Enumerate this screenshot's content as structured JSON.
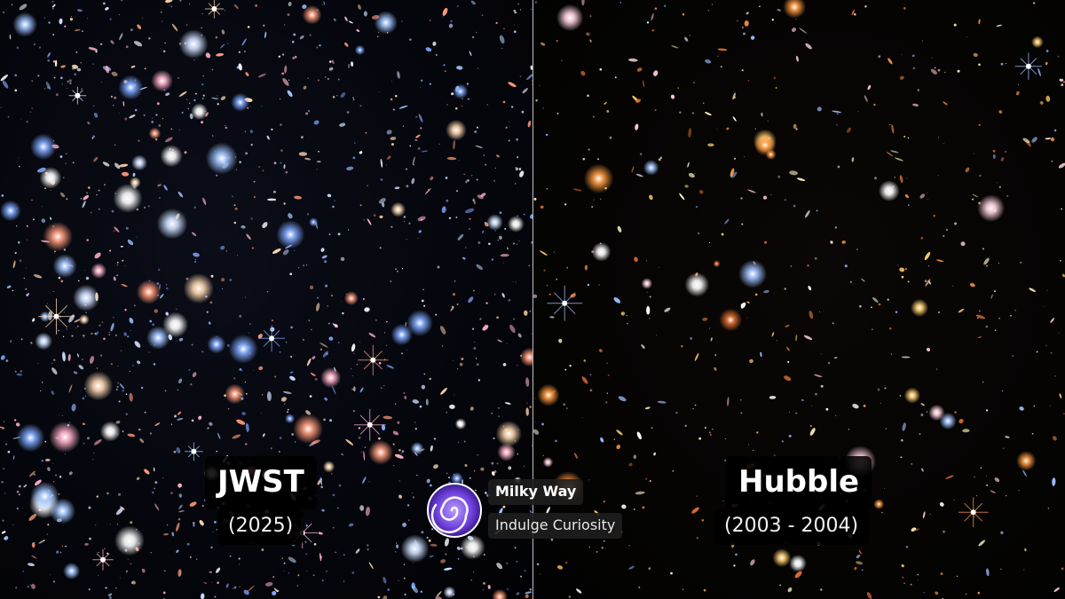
{
  "left_panel": {
    "title": "JWST",
    "years": "(2025)",
    "palette": [
      "#9fc4ff",
      "#cfe0ff",
      "#ffffff",
      "#ffd8b0",
      "#ff9a7a",
      "#ffb0c8",
      "#7fa8ff"
    ]
  },
  "right_panel": {
    "title": "Hubble",
    "years": "(2003 - 2004)",
    "palette": [
      "#ffcf70",
      "#ff9a40",
      "#ffffff",
      "#9fc0ff",
      "#ffd0e0",
      "#e07030",
      "#fff2c0"
    ]
  },
  "branding": {
    "name": "Milky Way",
    "tagline": "Indulge Curiosity",
    "logo_icon": "spiral-galaxy-icon",
    "logo_color": "#6a3cd8"
  }
}
